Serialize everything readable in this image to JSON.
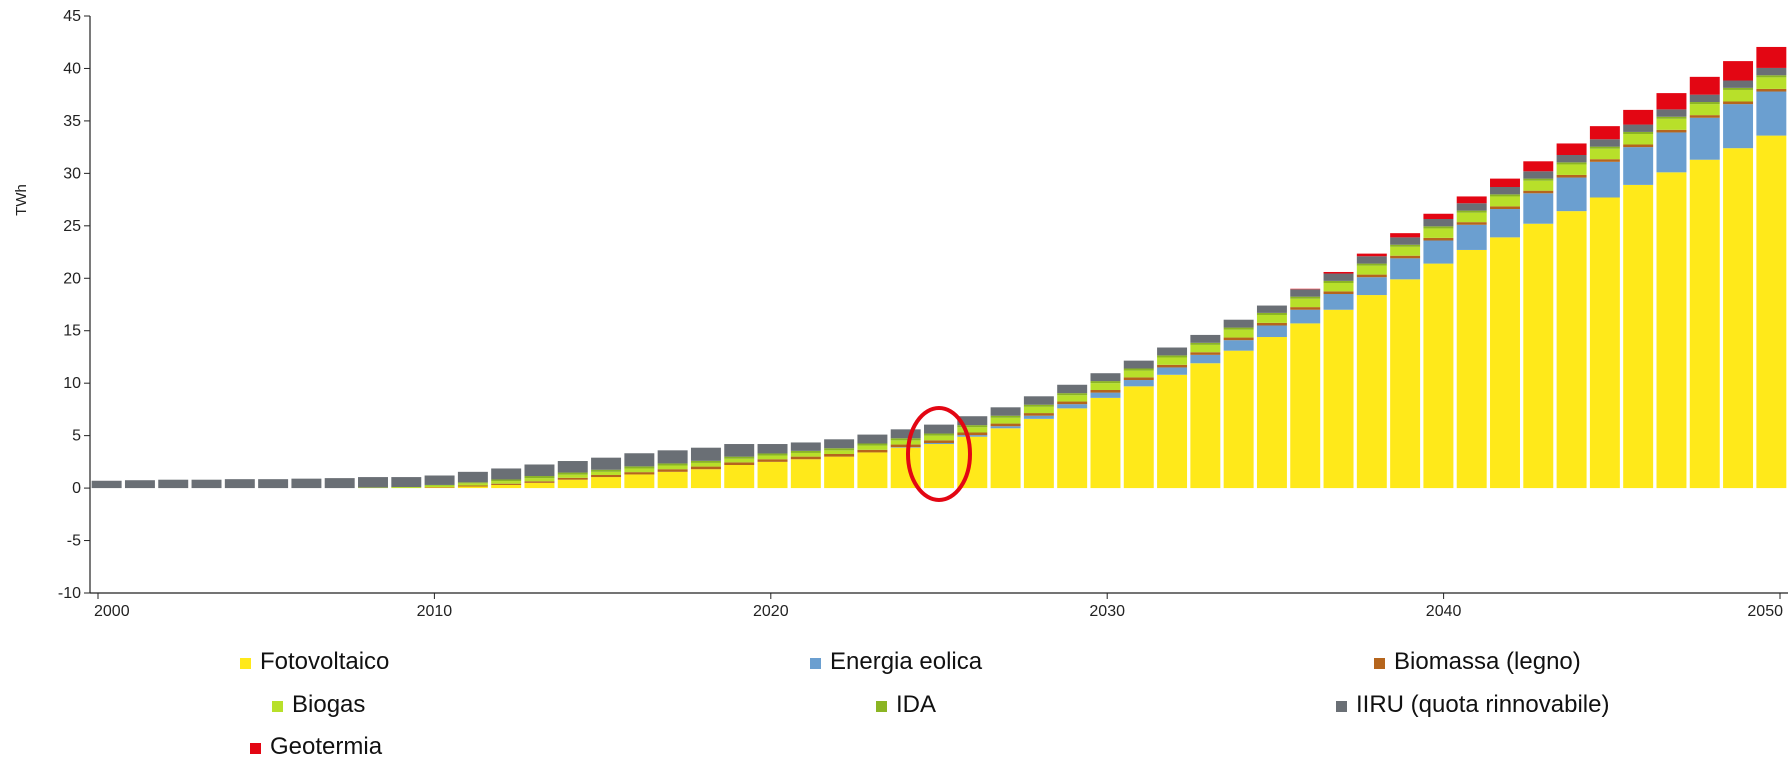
{
  "chart_data": {
    "type": "bar",
    "stacked": true,
    "ylabel": "TWh",
    "xlabel": "",
    "ylim": [
      -10,
      45
    ],
    "yticks": [
      -10,
      -5,
      0,
      5,
      10,
      15,
      20,
      25,
      30,
      35,
      40,
      45
    ],
    "xlim": [
      2000,
      2050
    ],
    "xticks": [
      2000,
      2010,
      2020,
      2030,
      2040,
      2050
    ],
    "grid": false,
    "legend_position": "bottom",
    "highlight": {
      "shape": "ellipse",
      "color": "#e30613",
      "category": 2025
    },
    "categories": [
      2000,
      2001,
      2002,
      2003,
      2004,
      2005,
      2006,
      2007,
      2008,
      2009,
      2010,
      2011,
      2012,
      2013,
      2014,
      2015,
      2016,
      2017,
      2018,
      2019,
      2020,
      2021,
      2022,
      2023,
      2024,
      2025,
      2026,
      2027,
      2028,
      2029,
      2030,
      2031,
      2032,
      2033,
      2034,
      2035,
      2036,
      2037,
      2038,
      2039,
      2040,
      2041,
      2042,
      2043,
      2044,
      2045,
      2046,
      2047,
      2048,
      2049,
      2050
    ],
    "series": [
      {
        "name": "Fotovoltaico",
        "color": "#ffe91a",
        "values": [
          0,
          0,
          0,
          0,
          0,
          0,
          0,
          0,
          0,
          0,
          0.05,
          0.15,
          0.3,
          0.5,
          0.8,
          1.05,
          1.3,
          1.55,
          1.8,
          2.2,
          2.5,
          2.75,
          3.0,
          3.4,
          3.85,
          4.2,
          4.9,
          5.7,
          6.6,
          7.6,
          8.6,
          9.7,
          10.8,
          11.9,
          13.1,
          14.4,
          15.7,
          17.0,
          18.4,
          19.9,
          21.4,
          22.7,
          23.9,
          25.2,
          26.4,
          27.7,
          28.9,
          30.1,
          31.3,
          32.4,
          33.6
        ]
      },
      {
        "name": "Energia eolica",
        "color": "#6b9fd0",
        "values": [
          0,
          0,
          0,
          0,
          0,
          0,
          0,
          0,
          0,
          0,
          0,
          0,
          0,
          0,
          0,
          0,
          0,
          0,
          0,
          0,
          0,
          0,
          0,
          0,
          0.05,
          0.1,
          0.15,
          0.2,
          0.3,
          0.4,
          0.5,
          0.6,
          0.7,
          0.8,
          1.0,
          1.1,
          1.3,
          1.5,
          1.7,
          2.0,
          2.2,
          2.4,
          2.7,
          2.9,
          3.2,
          3.4,
          3.6,
          3.8,
          4.0,
          4.2,
          4.2
        ]
      },
      {
        "name": "Biomassa (legno)",
        "color": "#b5651d",
        "values": [
          0,
          0,
          0,
          0,
          0,
          0,
          0,
          0,
          0,
          0,
          0.05,
          0.1,
          0.12,
          0.15,
          0.18,
          0.2,
          0.22,
          0.25,
          0.25,
          0.25,
          0.25,
          0.25,
          0.25,
          0.25,
          0.25,
          0.25,
          0.25,
          0.25,
          0.25,
          0.25,
          0.25,
          0.25,
          0.25,
          0.25,
          0.25,
          0.25,
          0.25,
          0.25,
          0.25,
          0.25,
          0.25,
          0.25,
          0.25,
          0.25,
          0.25,
          0.25,
          0.25,
          0.25,
          0.25,
          0.25,
          0.25
        ]
      },
      {
        "name": "Biogas",
        "color": "#b8e02a",
        "values": [
          0,
          0,
          0,
          0,
          0,
          0,
          0,
          0,
          0.05,
          0.1,
          0.15,
          0.2,
          0.25,
          0.3,
          0.3,
          0.3,
          0.35,
          0.35,
          0.35,
          0.35,
          0.35,
          0.35,
          0.35,
          0.4,
          0.4,
          0.45,
          0.5,
          0.55,
          0.6,
          0.6,
          0.65,
          0.65,
          0.7,
          0.7,
          0.75,
          0.75,
          0.8,
          0.8,
          0.85,
          0.85,
          0.9,
          0.9,
          0.95,
          0.95,
          1.0,
          1.0,
          1.0,
          1.05,
          1.05,
          1.1,
          1.1
        ]
      },
      {
        "name": "IDA",
        "color": "#8bb523",
        "values": [
          0,
          0,
          0,
          0,
          0,
          0,
          0,
          0,
          0,
          0,
          0.05,
          0.1,
          0.15,
          0.2,
          0.2,
          0.2,
          0.2,
          0.2,
          0.2,
          0.2,
          0.2,
          0.2,
          0.2,
          0.2,
          0.2,
          0.2,
          0.2,
          0.2,
          0.2,
          0.2,
          0.2,
          0.2,
          0.2,
          0.2,
          0.2,
          0.2,
          0.2,
          0.2,
          0.2,
          0.2,
          0.2,
          0.2,
          0.2,
          0.2,
          0.2,
          0.2,
          0.2,
          0.2,
          0.2,
          0.2,
          0.2
        ]
      },
      {
        "name": "IIRU (quota rinnovabile)",
        "color": "#6a6f75",
        "values": [
          0.7,
          0.75,
          0.8,
          0.8,
          0.85,
          0.85,
          0.9,
          0.95,
          1.0,
          0.95,
          0.9,
          1.0,
          1.05,
          1.1,
          1.1,
          1.15,
          1.25,
          1.25,
          1.25,
          1.2,
          0.9,
          0.8,
          0.85,
          0.85,
          0.85,
          0.85,
          0.85,
          0.8,
          0.8,
          0.8,
          0.75,
          0.75,
          0.75,
          0.75,
          0.75,
          0.7,
          0.7,
          0.7,
          0.7,
          0.7,
          0.7,
          0.7,
          0.7,
          0.7,
          0.7,
          0.7,
          0.7,
          0.7,
          0.7,
          0.7,
          0.7
        ]
      },
      {
        "name": "Geotermia",
        "color": "#e30613",
        "values": [
          0,
          0,
          0,
          0,
          0,
          0,
          0,
          0,
          0,
          0,
          0,
          0,
          0,
          0,
          0,
          0,
          0,
          0,
          0,
          0,
          0,
          0,
          0,
          0,
          0,
          0,
          0,
          0,
          0,
          0,
          0,
          0,
          0,
          0,
          0,
          0,
          0.05,
          0.15,
          0.25,
          0.4,
          0.5,
          0.65,
          0.8,
          0.95,
          1.1,
          1.25,
          1.4,
          1.55,
          1.7,
          1.85,
          2.0
        ]
      }
    ]
  }
}
